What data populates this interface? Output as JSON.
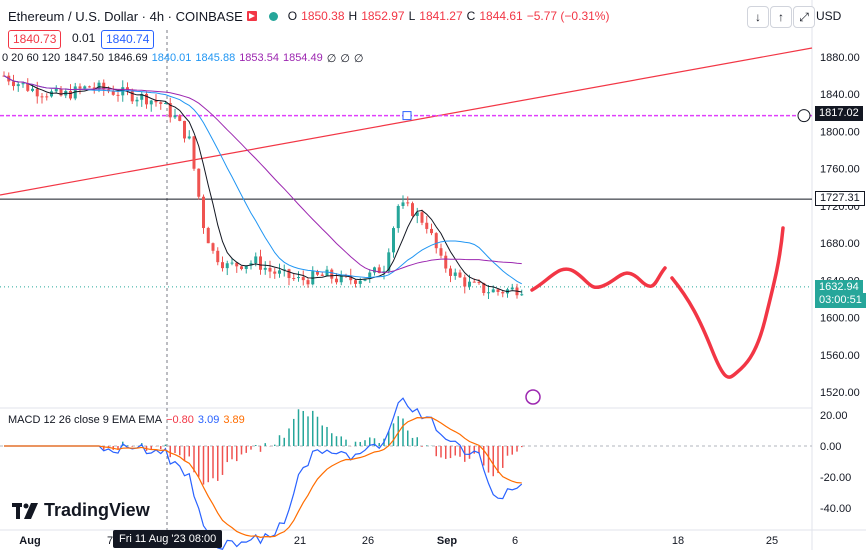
{
  "header": {
    "symbol": "Ethereum / U.S. Dollar · 4h · COINBASE",
    "o_label": "O",
    "o": "1850.38",
    "h_label": "H",
    "h": "1852.97",
    "l_label": "L",
    "l": "1841.27",
    "c_label": "C",
    "c": "1844.61",
    "change": "−5.77 (−0.31%)"
  },
  "quote": {
    "bid": "1840.73",
    "spread": "0.01",
    "ask": "1840.74"
  },
  "indicators": {
    "label": "0 20 60 120",
    "values": [
      "1847.50",
      "1846.69",
      "1840.01",
      "1845.88",
      "1853.54",
      "1854.49",
      "∅",
      "∅",
      "∅"
    ],
    "colors": [
      "#131722",
      "#131722",
      "#2196f3",
      "#2196f3",
      "#9c27b0",
      "#9c27b0",
      "#131722",
      "#131722",
      "#131722"
    ]
  },
  "toolbar": {
    "down_label": "↓",
    "up_label": "↑",
    "expand_label": "⤢",
    "currency": "USD"
  },
  "macd": {
    "label": "MACD 12 26 close 9 EMA EMA",
    "hist": "−0.80",
    "macd": "3.09",
    "signal": "3.89"
  },
  "branding": {
    "name": "TradingView"
  },
  "crosshair_date": "Fri 11 Aug '23  08:00",
  "price_tags": {
    "pink_line": "1817.02",
    "black_line": "1727.31",
    "last_price": "1632.94",
    "countdown": "03:00:51"
  },
  "colors": {
    "up": "#26a69a",
    "down": "#ef5350",
    "ma_black": "#131722",
    "ma_blue": "#2196f3",
    "ma_purple": "#9c27b0",
    "trend": "#f23645",
    "drawing": "#f23645",
    "macd": "#2962ff",
    "signal": "#ff6d00"
  },
  "chart_data": {
    "type": "candlestick",
    "title": "Ethereum / U.S. Dollar · 4h · COINBASE",
    "x_ticks": [
      "Aug",
      "7",
      "21",
      "26",
      "Sep",
      "6",
      "18",
      "25"
    ],
    "y_ticks": [
      1880,
      1840,
      1800,
      1760,
      1720,
      1680,
      1640,
      1600,
      1560,
      1520
    ],
    "ylim": [
      1500,
      1900
    ],
    "horizontal_lines": [
      1817.02,
      1727.31
    ],
    "last_price": 1632.94,
    "price_path": [
      [
        0,
        1860
      ],
      [
        3,
        1852
      ],
      [
        6,
        1845
      ],
      [
        9,
        1842
      ],
      [
        12,
        1838
      ],
      [
        15,
        1843
      ],
      [
        18,
        1848
      ],
      [
        21,
        1845
      ],
      [
        24,
        1842
      ],
      [
        27,
        1839
      ],
      [
        30,
        1836
      ],
      [
        33,
        1830
      ],
      [
        36,
        1815
      ],
      [
        39,
        1790
      ],
      [
        42,
        1700
      ],
      [
        44,
        1670
      ],
      [
        47,
        1655
      ],
      [
        50,
        1658
      ],
      [
        53,
        1660
      ],
      [
        56,
        1650
      ],
      [
        59,
        1645
      ],
      [
        62,
        1640
      ],
      [
        65,
        1643
      ],
      [
        68,
        1645
      ],
      [
        71,
        1640
      ],
      [
        74,
        1642
      ],
      [
        77,
        1645
      ],
      [
        80,
        1655
      ],
      [
        83,
        1720
      ],
      [
        86,
        1715
      ],
      [
        89,
        1700
      ],
      [
        92,
        1660
      ],
      [
        95,
        1645
      ],
      [
        98,
        1635
      ],
      [
        101,
        1630
      ],
      [
        104,
        1628
      ],
      [
        107,
        1630
      ],
      [
        110,
        1633
      ]
    ],
    "moving_averages": [
      {
        "name": "20",
        "color": "#131722"
      },
      {
        "name": "60",
        "color": "#2196f3"
      },
      {
        "name": "120",
        "color": "#9c27b0"
      }
    ],
    "macd": {
      "yticks": [
        20,
        0,
        -20,
        -40
      ],
      "ylim": [
        -45,
        25
      ]
    }
  }
}
